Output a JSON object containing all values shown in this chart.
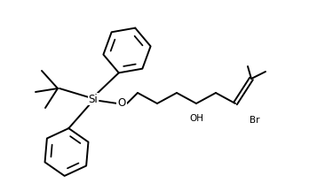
{
  "bg_color": "#ffffff",
  "line_color": "#000000",
  "line_width": 1.4,
  "font_size_atom": 7.5,
  "Si_label": "Si",
  "O_label": "O",
  "OH_label": "OH",
  "Br_label": "Br",
  "figsize": [
    3.66,
    2.16
  ],
  "dpi": 100
}
